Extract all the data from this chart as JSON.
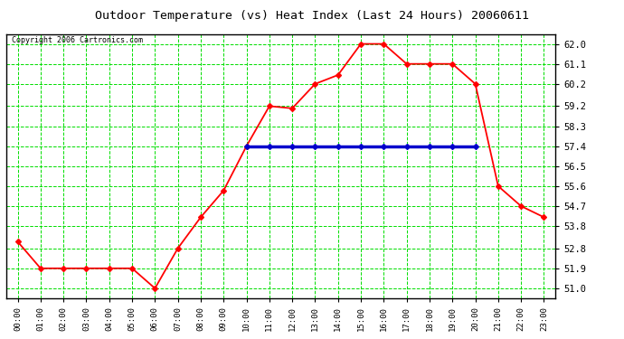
{
  "title": "Outdoor Temperature (vs) Heat Index (Last 24 Hours) 20060611",
  "copyright": "Copyright 2006 Cartronics.com",
  "hours": [
    "00:00",
    "01:00",
    "02:00",
    "03:00",
    "04:00",
    "05:00",
    "06:00",
    "07:00",
    "08:00",
    "09:00",
    "10:00",
    "11:00",
    "12:00",
    "13:00",
    "14:00",
    "15:00",
    "16:00",
    "17:00",
    "18:00",
    "19:00",
    "20:00",
    "21:00",
    "22:00",
    "23:00"
  ],
  "temp_values": [
    53.1,
    51.9,
    51.9,
    51.9,
    51.9,
    51.9,
    51.0,
    52.8,
    54.2,
    55.4,
    57.4,
    59.2,
    59.1,
    60.2,
    60.6,
    62.0,
    62.0,
    61.1,
    61.1,
    61.1,
    60.2,
    55.6,
    54.7,
    54.2
  ],
  "heat_values": [
    null,
    null,
    null,
    null,
    null,
    null,
    null,
    null,
    null,
    null,
    57.4,
    57.4,
    57.4,
    57.4,
    57.4,
    57.4,
    57.4,
    57.4,
    57.4,
    57.4,
    57.4,
    null,
    null,
    null
  ],
  "temp_color": "#ff0000",
  "heat_color": "#0000cc",
  "grid_color": "#00dd00",
  "bg_color": "#ffffff",
  "title_color": "#000000",
  "yticks": [
    51.0,
    51.9,
    52.8,
    53.8,
    54.7,
    55.6,
    56.5,
    57.4,
    58.3,
    59.2,
    60.2,
    61.1,
    62.0
  ],
  "ylim": [
    50.55,
    62.45
  ],
  "marker": "D",
  "marker_size": 3,
  "linewidth": 1.3,
  "heat_linewidth": 2.5
}
